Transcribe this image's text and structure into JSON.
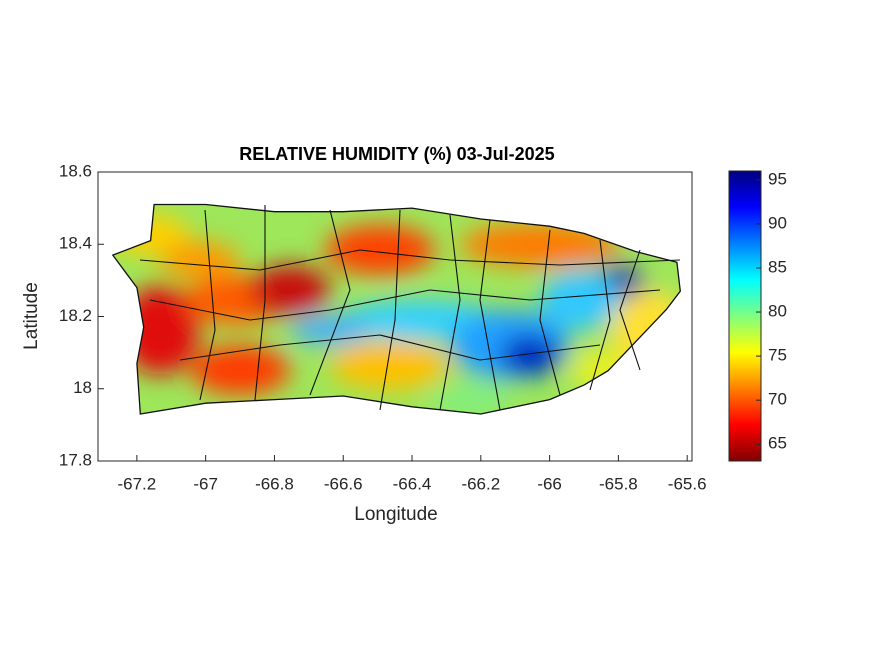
{
  "chart_data": {
    "type": "map",
    "title": "RELATIVE HUMIDITY (%) 03-Jul-2025",
    "xlabel": "Longitude",
    "ylabel": "Latitude",
    "xlim": [
      -67.313,
      -65.586
    ],
    "ylim": [
      17.8,
      18.6
    ],
    "xticks": [
      -67.2,
      -67,
      -66.8,
      -66.6,
      -66.4,
      -66.2,
      -66,
      -65.8,
      -65.6
    ],
    "yticks": [
      17.8,
      18,
      18.2,
      18.4,
      18.6
    ],
    "colorbar": {
      "colormap": "jet",
      "clim": [
        63.1,
        96
      ],
      "ticks": [
        65,
        70,
        75,
        80,
        85,
        90,
        95
      ]
    }
  }
}
